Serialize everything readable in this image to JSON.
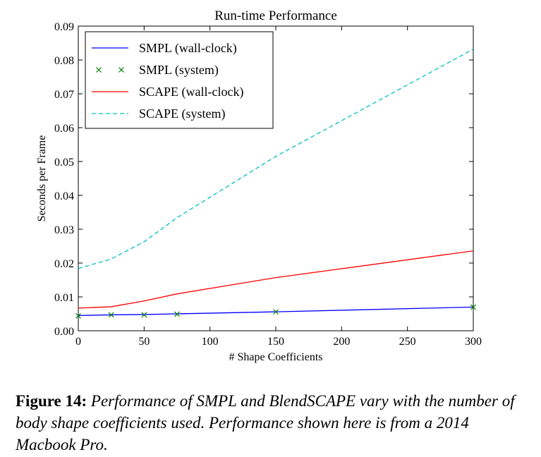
{
  "chart_data": {
    "type": "line",
    "title": "Run-time Performance",
    "xlabel": "# Shape Coefficients",
    "ylabel": "Seconds per Frame",
    "xlim": [
      0,
      300
    ],
    "ylim": [
      0,
      0.09
    ],
    "xticks": [
      0,
      50,
      100,
      150,
      200,
      250,
      300
    ],
    "xtick_labels": [
      "0",
      "50",
      "100",
      "150",
      "200",
      "250",
      "300"
    ],
    "yticks": [
      0,
      0.01,
      0.02,
      0.03,
      0.04,
      0.05,
      0.06,
      0.07,
      0.08,
      0.09
    ],
    "ytick_labels": [
      "0.00",
      "0.01",
      "0.02",
      "0.03",
      "0.04",
      "0.05",
      "0.06",
      "0.07",
      "0.08",
      "0.09"
    ],
    "grid": false,
    "legend_position": "top-left",
    "series": [
      {
        "name": "SMPL (wall-clock)",
        "color": "#0000ff",
        "style": "solid",
        "x": [
          0,
          25,
          50,
          75,
          150,
          300
        ],
        "y": [
          0.0045,
          0.0047,
          0.0048,
          0.005,
          0.0056,
          0.007
        ]
      },
      {
        "name": "SMPL (system)",
        "color": "#008000",
        "style": "x-marker",
        "x": [
          0,
          25,
          50,
          75,
          150,
          300
        ],
        "y": [
          0.0044,
          0.0047,
          0.0047,
          0.0049,
          0.0056,
          0.007
        ]
      },
      {
        "name": "SCAPE (wall-clock)",
        "color": "#ff0000",
        "style": "solid",
        "x": [
          0,
          25,
          50,
          75,
          150,
          300
        ],
        "y": [
          0.0067,
          0.0071,
          0.0088,
          0.0109,
          0.0157,
          0.0236
        ]
      },
      {
        "name": "SCAPE (system)",
        "color": "#00bfbf",
        "style": "dashed",
        "x": [
          0,
          25,
          50,
          75,
          150,
          300
        ],
        "y": [
          0.0184,
          0.0212,
          0.0263,
          0.0334,
          0.0515,
          0.0832
        ]
      }
    ]
  },
  "caption": {
    "label": "Figure 14:",
    "text": "Performance of SMPL and BlendSCAPE vary with the number of body shape coefficients used. Performance shown here is from a 2014 Macbook Pro."
  }
}
